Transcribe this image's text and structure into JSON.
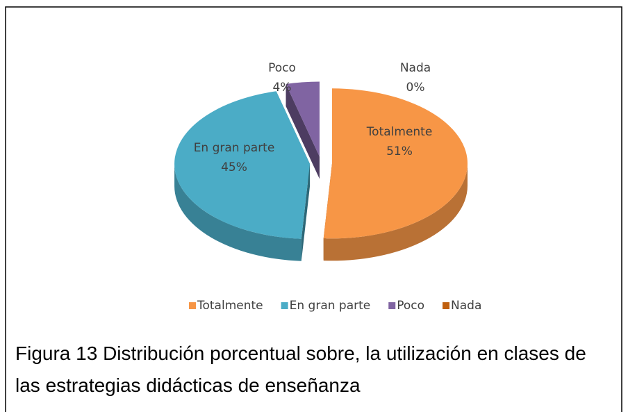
{
  "chart_data": {
    "type": "pie",
    "three_d": true,
    "exploded": true,
    "categories": [
      "Totalmente",
      "En gran parte",
      "Poco",
      "Nada"
    ],
    "values": [
      51,
      45,
      4,
      0
    ],
    "value_labels": [
      "51%",
      "45%",
      "4%",
      "0%"
    ],
    "colors": [
      "#f79646",
      "#4bacc6",
      "#8064a2",
      "#c0600f"
    ],
    "legend": "bottom"
  },
  "caption": "Figura 13 Distribución porcentual sobre, la utilización en clases de las estrategias didácticas de enseñanza"
}
